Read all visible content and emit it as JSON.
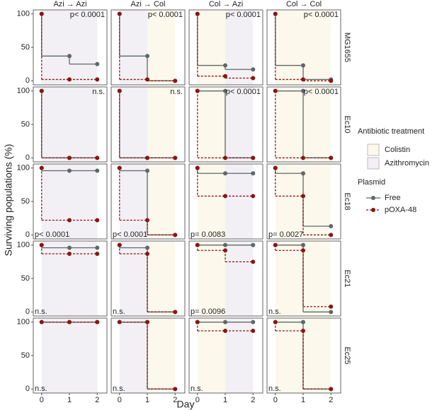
{
  "figure": {
    "y_label": "Surviving populations (%)",
    "x_label": "Day",
    "xlim": [
      -0.3,
      2.35
    ],
    "xticks": [
      0,
      1,
      2
    ],
    "ylim": [
      -6,
      106
    ],
    "yticks": [
      0,
      50,
      100
    ],
    "columns": [
      {
        "label": "Azi → Azi",
        "treatments": [
          "Azithromycin",
          "Azithromycin"
        ]
      },
      {
        "label": "Azi → Col",
        "treatments": [
          "Azithromycin",
          "Colistin"
        ]
      },
      {
        "label": "Col → Azi",
        "treatments": [
          "Colistin",
          "Azithromycin"
        ]
      },
      {
        "label": "Col → Col",
        "treatments": [
          "Colistin",
          "Colistin"
        ]
      }
    ],
    "rows": [
      "MG1655",
      "Ec10",
      "Ec18",
      "Ec21",
      "Ec25"
    ],
    "treatment_legend": {
      "title": "Antibiotic treatment",
      "items": [
        {
          "name": "Colistin",
          "color": "#fcf8ec"
        },
        {
          "name": "Azithromycin",
          "color": "#f2f0f4"
        }
      ]
    },
    "plasmid_legend": {
      "title": "Plasmid",
      "items": [
        {
          "name": "Free",
          "color": "#5d6868",
          "dash": false
        },
        {
          "name": "pOXA-48",
          "color": "#8b1515",
          "dash": true
        }
      ]
    }
  },
  "chart_data": [
    {
      "type": "step",
      "x": [
        0,
        1,
        2
      ],
      "series": [
        {
          "values": [
            100,
            37,
            25
          ]
        },
        {
          "values": [
            100,
            2,
            2
          ]
        }
      ],
      "annotation": "p< 0.0001",
      "annotation_corner": "top-right"
    },
    {
      "type": "step",
      "x": [
        0,
        1,
        2
      ],
      "series": [
        {
          "values": [
            100,
            37,
            0
          ]
        },
        {
          "values": [
            100,
            2,
            0
          ]
        }
      ],
      "annotation": "p< 0.0001",
      "annotation_corner": "top-right"
    },
    {
      "type": "step",
      "x": [
        0,
        1,
        2
      ],
      "series": [
        {
          "values": [
            100,
            23,
            17
          ]
        },
        {
          "values": [
            100,
            7,
            4
          ]
        }
      ],
      "annotation": "p< 0.0001",
      "annotation_corner": "top-right"
    },
    {
      "type": "step",
      "x": [
        0,
        1,
        2
      ],
      "series": [
        {
          "values": [
            100,
            23,
            2
          ]
        },
        {
          "values": [
            100,
            2,
            0
          ]
        }
      ],
      "annotation": "p< 0.0001",
      "annotation_corner": "top-right"
    },
    {
      "type": "step",
      "x": [
        0,
        1,
        2
      ],
      "series": [
        {
          "values": [
            100,
            0,
            0
          ]
        },
        {
          "values": [
            100,
            0,
            0
          ]
        }
      ],
      "annotation": "n.s.",
      "annotation_corner": "top-right"
    },
    {
      "type": "step",
      "x": [
        0,
        1,
        2
      ],
      "series": [
        {
          "values": [
            100,
            0,
            0
          ]
        },
        {
          "values": [
            100,
            0,
            0
          ]
        }
      ],
      "annotation": "n.s.",
      "annotation_corner": "top-right"
    },
    {
      "type": "step",
      "x": [
        0,
        1,
        2
      ],
      "series": [
        {
          "values": [
            100,
            100,
            0
          ]
        },
        {
          "values": [
            100,
            0,
            0
          ]
        }
      ],
      "annotation": "p< 0.0001",
      "annotation_corner": "top-right"
    },
    {
      "type": "step",
      "x": [
        0,
        1,
        2
      ],
      "series": [
        {
          "values": [
            100,
            100,
            0
          ]
        },
        {
          "values": [
            100,
            0,
            0
          ]
        }
      ],
      "annotation": "p< 0.0001",
      "annotation_corner": "top-right"
    },
    {
      "type": "step",
      "x": [
        0,
        1,
        2
      ],
      "series": [
        {
          "values": [
            100,
            96,
            96
          ]
        },
        {
          "values": [
            100,
            22,
            22
          ]
        }
      ],
      "annotation": "p< 0.0001",
      "annotation_corner": "bottom-left"
    },
    {
      "type": "step",
      "x": [
        0,
        1,
        2
      ],
      "series": [
        {
          "values": [
            100,
            96,
            0
          ]
        },
        {
          "values": [
            100,
            22,
            0
          ]
        }
      ],
      "annotation": "p< 0.0001",
      "annotation_corner": "bottom-left"
    },
    {
      "type": "step",
      "x": [
        0,
        1,
        2
      ],
      "series": [
        {
          "values": [
            100,
            92,
            92
          ]
        },
        {
          "values": [
            100,
            58,
            58
          ]
        }
      ],
      "annotation": "p= 0.0083",
      "annotation_corner": "bottom-left"
    },
    {
      "type": "step",
      "x": [
        0,
        1,
        2
      ],
      "series": [
        {
          "values": [
            100,
            92,
            13
          ]
        },
        {
          "values": [
            100,
            58,
            0
          ]
        }
      ],
      "annotation": "p= 0.0027",
      "annotation_corner": "bottom-left"
    },
    {
      "type": "step",
      "x": [
        0,
        1,
        2
      ],
      "series": [
        {
          "values": [
            100,
            96,
            96
          ]
        },
        {
          "values": [
            100,
            87,
            87
          ]
        }
      ],
      "annotation": "n.s.",
      "annotation_corner": "bottom-left"
    },
    {
      "type": "step",
      "x": [
        0,
        1,
        2
      ],
      "series": [
        {
          "values": [
            100,
            96,
            0
          ]
        },
        {
          "values": [
            100,
            87,
            0
          ]
        }
      ],
      "annotation": "n.s.",
      "annotation_corner": "bottom-left"
    },
    {
      "type": "step",
      "x": [
        0,
        1,
        2
      ],
      "series": [
        {
          "values": [
            100,
            100,
            100
          ]
        },
        {
          "values": [
            100,
            92,
            75
          ]
        }
      ],
      "annotation": "p= 0.0096",
      "annotation_corner": "bottom-left"
    },
    {
      "type": "step",
      "x": [
        0,
        1,
        2
      ],
      "series": [
        {
          "values": [
            100,
            100,
            0
          ]
        },
        {
          "values": [
            100,
            92,
            8
          ]
        }
      ],
      "annotation": "n.s.",
      "annotation_corner": "bottom-left"
    },
    {
      "type": "step",
      "x": [
        0,
        1,
        2
      ],
      "series": [
        {
          "values": [
            100,
            100,
            100
          ]
        },
        {
          "values": [
            100,
            100,
            100
          ]
        }
      ],
      "annotation": "n.s.",
      "annotation_corner": "bottom-left"
    },
    {
      "type": "step",
      "x": [
        0,
        1,
        2
      ],
      "series": [
        {
          "values": [
            100,
            100,
            0
          ]
        },
        {
          "values": [
            100,
            100,
            0
          ]
        }
      ],
      "annotation": "n.s.",
      "annotation_corner": "bottom-left"
    },
    {
      "type": "step",
      "x": [
        0,
        1,
        2
      ],
      "series": [
        {
          "values": [
            100,
            100,
            100
          ]
        },
        {
          "values": [
            100,
            87,
            87
          ]
        }
      ],
      "annotation": "n.s.",
      "annotation_corner": "bottom-left"
    },
    {
      "type": "step",
      "x": [
        0,
        1,
        2
      ],
      "series": [
        {
          "values": [
            100,
            100,
            0
          ]
        },
        {
          "values": [
            100,
            87,
            0
          ]
        }
      ],
      "annotation": "n.s.",
      "annotation_corner": "bottom-left"
    }
  ]
}
